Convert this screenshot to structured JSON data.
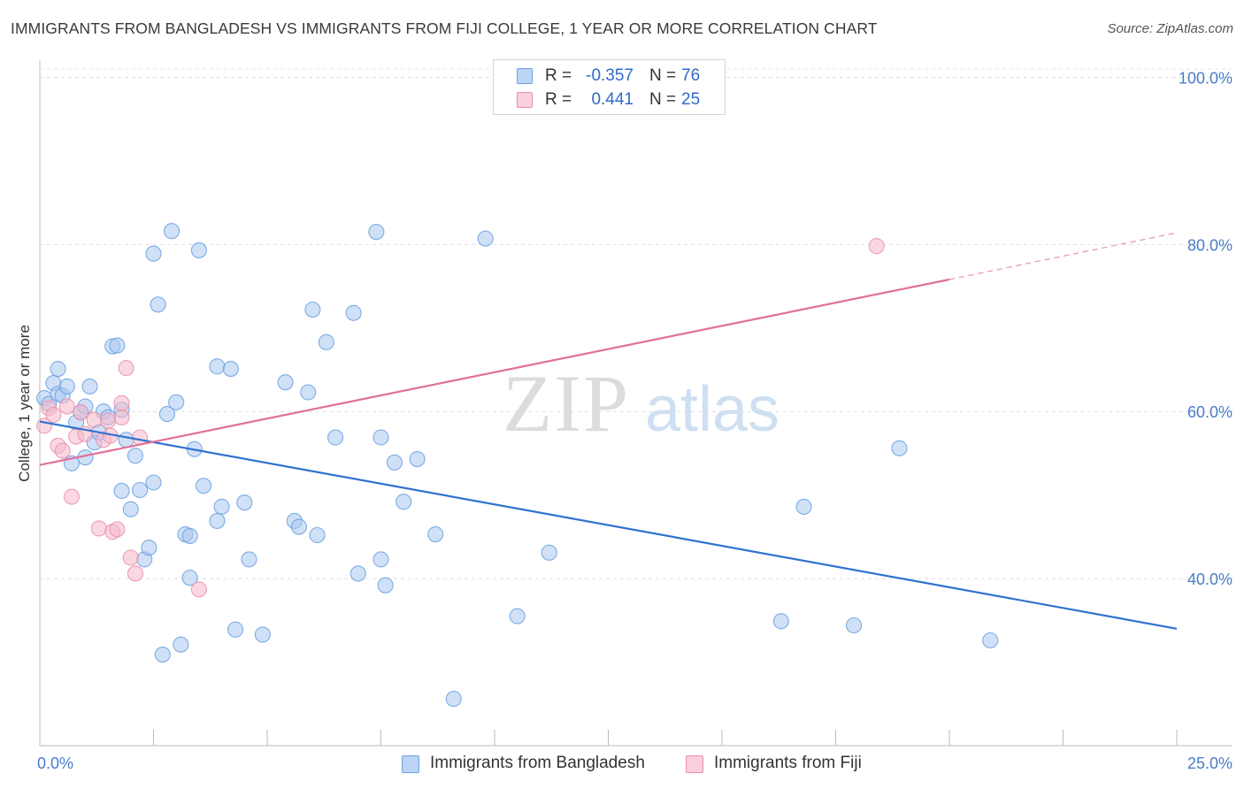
{
  "header": {
    "title": "IMMIGRANTS FROM BANGLADESH VS IMMIGRANTS FROM FIJI COLLEGE, 1 YEAR OR MORE CORRELATION CHART",
    "source": "Source: ZipAtlas.com"
  },
  "watermark": {
    "zip": "ZIP",
    "atlas": "atlas"
  },
  "stats": {
    "rows": [
      {
        "r_label": "R =",
        "r_value": "-0.357",
        "n_label": "N =",
        "n_value": "76",
        "color": "#a9c8f0"
      },
      {
        "r_label": "R =",
        "r_value": "0.441",
        "n_label": "N =",
        "n_value": "25",
        "color": "#f5b8ca"
      }
    ]
  },
  "legend": {
    "items": [
      {
        "label": "Immigrants from Bangladesh",
        "color": "#a9c8f0"
      },
      {
        "label": "Immigrants from Fiji",
        "color": "#f5b8ca"
      }
    ]
  },
  "chart_data": {
    "type": "scatter",
    "title": "IMMIGRANTS FROM BANGLADESH VS IMMIGRANTS FROM FIJI COLLEGE, 1 YEAR OR MORE CORRELATION CHART",
    "xlabel": "",
    "ylabel": "College, 1 year or more",
    "xlim": [
      0,
      25
    ],
    "ylim": [
      20,
      101
    ],
    "x_tick_labels": [
      "0.0%",
      "25.0%"
    ],
    "y_ticks": [
      40,
      60,
      80,
      100
    ],
    "y_tick_labels": [
      "40.0%",
      "60.0%",
      "80.0%",
      "100.0%"
    ],
    "grid": true,
    "legend_position": "bottom-center",
    "series": [
      {
        "name": "Immigrants from Bangladesh",
        "color": "#6a9fe0",
        "fill": "#a9c8f0",
        "r": -0.357,
        "n": 76,
        "trend": {
          "x": [
            0,
            25
          ],
          "y": [
            58.8,
            34.0
          ]
        },
        "points": [
          [
            0.1,
            61.6
          ],
          [
            0.2,
            60.9
          ],
          [
            0.3,
            63.4
          ],
          [
            0.4,
            62.1
          ],
          [
            0.4,
            65.1
          ],
          [
            0.5,
            61.9
          ],
          [
            0.6,
            63.0
          ],
          [
            0.7,
            53.8
          ],
          [
            0.8,
            58.7
          ],
          [
            0.9,
            59.9
          ],
          [
            1.0,
            60.6
          ],
          [
            1.0,
            54.5
          ],
          [
            1.1,
            63.0
          ],
          [
            1.2,
            56.3
          ],
          [
            1.3,
            57.5
          ],
          [
            1.4,
            60.0
          ],
          [
            1.5,
            59.3
          ],
          [
            1.6,
            67.8
          ],
          [
            1.7,
            67.9
          ],
          [
            1.8,
            60.2
          ],
          [
            1.8,
            50.5
          ],
          [
            1.9,
            56.6
          ],
          [
            2.0,
            48.3
          ],
          [
            2.1,
            54.7
          ],
          [
            2.2,
            50.6
          ],
          [
            2.3,
            42.3
          ],
          [
            2.4,
            43.7
          ],
          [
            2.5,
            78.9
          ],
          [
            2.5,
            51.5
          ],
          [
            2.6,
            72.8
          ],
          [
            2.7,
            30.9
          ],
          [
            2.8,
            59.7
          ],
          [
            2.9,
            81.6
          ],
          [
            3.0,
            61.1
          ],
          [
            3.1,
            32.1
          ],
          [
            3.2,
            45.3
          ],
          [
            3.3,
            45.1
          ],
          [
            3.3,
            40.1
          ],
          [
            3.4,
            55.5
          ],
          [
            3.5,
            79.3
          ],
          [
            3.6,
            51.1
          ],
          [
            3.9,
            65.4
          ],
          [
            3.9,
            46.9
          ],
          [
            4.0,
            48.6
          ],
          [
            4.2,
            65.1
          ],
          [
            4.3,
            33.9
          ],
          [
            4.5,
            49.1
          ],
          [
            4.6,
            42.3
          ],
          [
            4.9,
            33.3
          ],
          [
            5.4,
            63.5
          ],
          [
            5.6,
            46.9
          ],
          [
            5.7,
            46.2
          ],
          [
            5.9,
            62.3
          ],
          [
            6.0,
            72.2
          ],
          [
            6.1,
            45.2
          ],
          [
            6.3,
            68.3
          ],
          [
            6.5,
            56.9
          ],
          [
            6.9,
            71.8
          ],
          [
            7.0,
            40.6
          ],
          [
            7.4,
            81.5
          ],
          [
            7.5,
            42.3
          ],
          [
            7.5,
            56.9
          ],
          [
            7.6,
            39.2
          ],
          [
            7.8,
            53.9
          ],
          [
            8.0,
            49.2
          ],
          [
            8.3,
            54.3
          ],
          [
            8.7,
            45.3
          ],
          [
            9.1,
            25.6
          ],
          [
            9.8,
            80.7
          ],
          [
            10.5,
            35.5
          ],
          [
            11.2,
            43.1
          ],
          [
            16.3,
            34.9
          ],
          [
            16.8,
            48.6
          ],
          [
            17.9,
            34.4
          ],
          [
            18.9,
            55.6
          ],
          [
            20.9,
            32.6
          ]
        ]
      },
      {
        "name": "Immigrants from Fiji",
        "color": "#e890aa",
        "fill": "#f5b8ca",
        "r": 0.441,
        "n": 25,
        "trend": {
          "x": [
            0,
            20
          ],
          "y": [
            53.6,
            75.8
          ]
        },
        "trend_dashed_to": {
          "x": 25,
          "y": 81.4
        },
        "points": [
          [
            0.1,
            58.3
          ],
          [
            0.2,
            60.4
          ],
          [
            0.3,
            59.6
          ],
          [
            0.4,
            55.9
          ],
          [
            0.5,
            55.3
          ],
          [
            0.6,
            60.6
          ],
          [
            0.7,
            49.8
          ],
          [
            0.8,
            57.0
          ],
          [
            0.9,
            59.9
          ],
          [
            1.0,
            57.3
          ],
          [
            1.2,
            59.0
          ],
          [
            1.3,
            46.0
          ],
          [
            1.4,
            56.6
          ],
          [
            1.5,
            58.9
          ],
          [
            1.55,
            57.1
          ],
          [
            1.6,
            45.6
          ],
          [
            1.7,
            45.9
          ],
          [
            1.8,
            59.3
          ],
          [
            1.8,
            61.0
          ],
          [
            1.9,
            65.2
          ],
          [
            2.0,
            42.5
          ],
          [
            2.1,
            40.6
          ],
          [
            2.2,
            56.9
          ],
          [
            3.5,
            38.7
          ],
          [
            18.4,
            79.8
          ]
        ]
      }
    ]
  }
}
